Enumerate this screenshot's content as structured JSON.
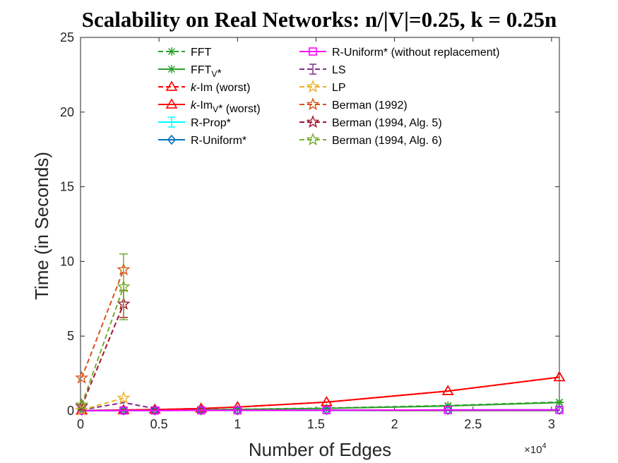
{
  "chart_data": {
    "type": "line",
    "title": "Scalability on Real Networks: n/|V|=0.25, k = 0.25n",
    "xlabel": "Number of Edges",
    "ylabel": "Time (in Seconds)",
    "x_multiplier": "×10",
    "x_multiplier_exp": "4",
    "xlim": [
      0,
      30500
    ],
    "ylim": [
      0,
      25
    ],
    "xticks": [
      0,
      5000,
      10000,
      15000,
      20000,
      25000,
      30000
    ],
    "xtick_labels": [
      "0",
      "0.5",
      "1",
      "1.5",
      "2",
      "2.5",
      "3"
    ],
    "yticks": [
      0,
      5,
      10,
      15,
      20,
      25
    ],
    "ytick_labels": [
      "0",
      "5",
      "10",
      "15",
      "20",
      "25"
    ],
    "grid": false,
    "legend_position": "top",
    "series": [
      {
        "name": "FFT",
        "legend_parts": [
          [
            "FFT",
            ""
          ]
        ],
        "color": "#2ca02c",
        "dash": true,
        "marker": "asterisk",
        "x": [
          78,
          2742,
          4732,
          7680,
          10000,
          15672,
          23400,
          30500
        ],
        "y": [
          0.02,
          0.05,
          0.06,
          0.08,
          0.1,
          0.18,
          0.35,
          0.58
        ]
      },
      {
        "name": "FFTV*",
        "legend_parts": [
          [
            "FFT",
            ""
          ],
          [
            "V",
            "sub"
          ],
          [
            "*",
            ""
          ]
        ],
        "color": "#2ca02c",
        "dash": false,
        "marker": "asterisk",
        "x": [
          78,
          2742,
          4732,
          7680,
          10000,
          15672,
          23400,
          30500
        ],
        "y": [
          0.02,
          0.04,
          0.05,
          0.07,
          0.09,
          0.16,
          0.32,
          0.55
        ]
      },
      {
        "name": "k-Im (worst)",
        "legend_parts": [
          [
            "k",
            "italic"
          ],
          [
            "-Im (worst)",
            ""
          ]
        ],
        "color": "#ff0000",
        "dash": true,
        "marker": "triangle",
        "x": [
          78,
          2742,
          4732,
          7680,
          10000,
          15672,
          23400,
          30500
        ],
        "y": [
          0.02,
          0.05,
          0.08,
          0.15,
          0.25,
          0.58,
          1.32,
          2.25
        ]
      },
      {
        "name": "k-ImV* (worst)",
        "legend_parts": [
          [
            "k",
            "italic"
          ],
          [
            "-Im",
            ""
          ],
          [
            "V",
            "sub"
          ],
          [
            "* (worst)",
            ""
          ]
        ],
        "color": "#ff0000",
        "dash": false,
        "marker": "triangle",
        "x": [
          78,
          2742,
          4732,
          7680,
          10000,
          15672,
          23400,
          30500
        ],
        "y": [
          0.02,
          0.05,
          0.08,
          0.15,
          0.25,
          0.58,
          1.32,
          2.25
        ]
      },
      {
        "name": "R-Prop*",
        "legend_parts": [
          [
            "R-Prop*",
            ""
          ]
        ],
        "color": "#00ffff",
        "dash": false,
        "marker": "none",
        "x": [
          78,
          2742,
          4732,
          7680,
          10000,
          15672,
          23400,
          30500
        ],
        "y": [
          0.01,
          0.02,
          0.02,
          0.03,
          0.03,
          0.04,
          0.05,
          0.06
        ]
      },
      {
        "name": "R-Uniform*",
        "legend_parts": [
          [
            "R-Uniform*",
            ""
          ]
        ],
        "color": "#0072bd",
        "dash": false,
        "marker": "diamond",
        "x": [
          78,
          2742,
          4732,
          7680,
          10000,
          15672,
          23400,
          30500
        ],
        "y": [
          0.01,
          0.02,
          0.02,
          0.03,
          0.03,
          0.04,
          0.05,
          0.06
        ]
      },
      {
        "name": "R-Uniform* (without replacement)",
        "legend_parts": [
          [
            "R-Uniform* (without replacement)",
            ""
          ]
        ],
        "color": "#ff00ff",
        "dash": false,
        "marker": "square",
        "x": [
          78,
          2742,
          4732,
          7680,
          10000,
          15672,
          23400,
          30500
        ],
        "y": [
          0.01,
          0.02,
          0.02,
          0.03,
          0.03,
          0.04,
          0.05,
          0.06
        ]
      },
      {
        "name": "LS",
        "legend_parts": [
          [
            "LS",
            ""
          ]
        ],
        "color": "#7e2f8e",
        "dash": true,
        "marker": "none",
        "x": [
          78,
          2742,
          4732
        ],
        "y": [
          0.05,
          0.55,
          0.15
        ]
      },
      {
        "name": "LP",
        "legend_parts": [
          [
            "LP",
            ""
          ]
        ],
        "color": "#edb120",
        "dash": true,
        "marker": "star",
        "x": [
          78,
          2742
        ],
        "y": [
          0.05,
          0.85
        ]
      },
      {
        "name": "Berman (1992)",
        "legend_parts": [
          [
            "Berman (1992)",
            ""
          ]
        ],
        "color": "#d95319",
        "dash": true,
        "marker": "star",
        "x": [
          78,
          2742
        ],
        "y": [
          2.2,
          9.45
        ]
      },
      {
        "name": "Berman (1994, Alg. 5)",
        "legend_parts": [
          [
            "Berman (1994, Alg. 5)",
            ""
          ]
        ],
        "color": "#a2142f",
        "dash": true,
        "marker": "star",
        "x": [
          78,
          2742
        ],
        "y": [
          0.3,
          7.15
        ],
        "err": [
          0,
          0.9
        ]
      },
      {
        "name": "Berman (1994, Alg. 6)",
        "legend_parts": [
          [
            "Berman (1994, Alg. 6)",
            ""
          ]
        ],
        "color": "#77ac30",
        "dash": true,
        "marker": "star",
        "x": [
          78,
          2742
        ],
        "y": [
          0.4,
          8.3
        ],
        "err": [
          0,
          2.2
        ]
      }
    ]
  }
}
